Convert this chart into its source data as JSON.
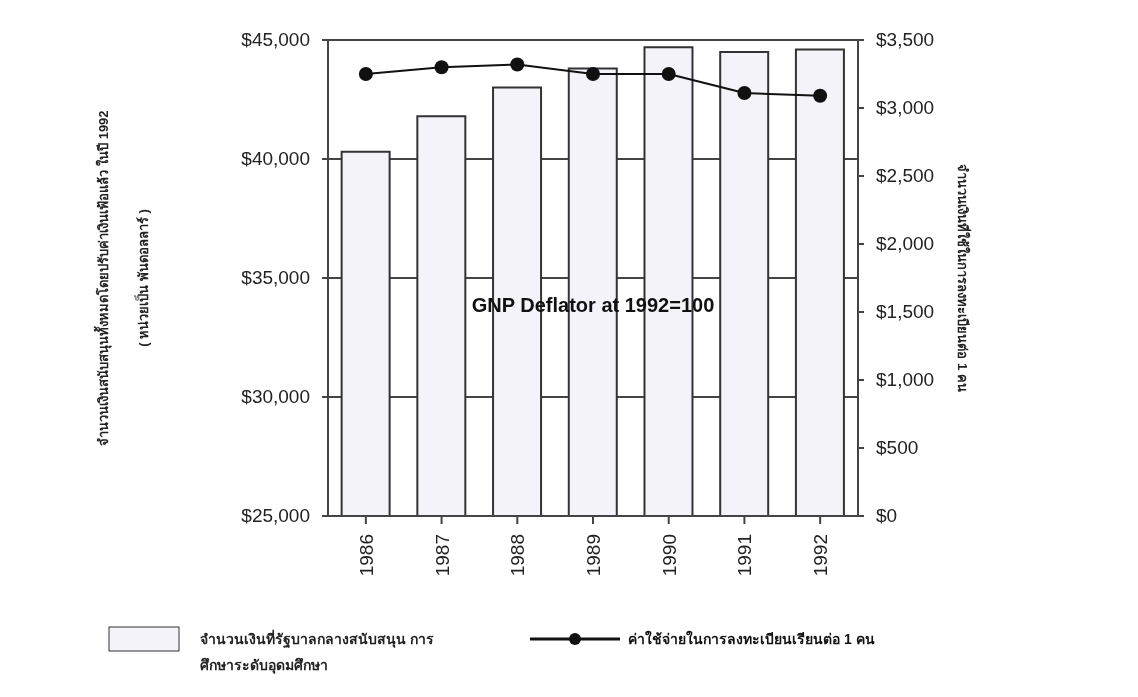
{
  "chart_data": {
    "type": "bar",
    "categories": [
      "1986",
      "1987",
      "1988",
      "1989",
      "1990",
      "1991",
      "1992"
    ],
    "series": [
      {
        "name": "จำนวนเงินที่รัฐบาลกลางสนับสนุน การศึกษาระดับอุดมศึกษา",
        "color": "#f3f3f9",
        "values": [
          40300,
          41800,
          43000,
          43800,
          44700,
          44500,
          44600
        ]
      },
      {
        "name": "ค่าใช้จ่ายในการลงทะเบียนเรียนต่อ 1 คน",
        "type": "line",
        "axis": "y2",
        "color": "#111111",
        "marker": "circle",
        "values": [
          3250,
          3300,
          3320,
          3250,
          3250,
          3110,
          3090
        ]
      }
    ],
    "ylabel": "จำนวนเงินสนับสนุนทั้งหมดโดยปรับค่าเงินเฟ้อแล้ว ในปี 1992\n( หน่วยเป็น พันดอลลาร์ )",
    "y2label": "จำนวนเงินที่ใช้ในการลงทะเบียนต่อ 1 คน",
    "ylim": [
      25000,
      45000
    ],
    "yticks": [
      {
        "value": 25000,
        "label": "$25,000"
      },
      {
        "value": 30000,
        "label": "$30,000"
      },
      {
        "value": 35000,
        "label": "$35,000"
      },
      {
        "value": 40000,
        "label": "$40,000"
      },
      {
        "value": 45000,
        "label": "$45,000"
      }
    ],
    "y2lim": [
      0,
      3500
    ],
    "y2ticks": [
      {
        "value": 0,
        "label": "$0"
      },
      {
        "value": 500,
        "label": "$500"
      },
      {
        "value": 1000,
        "label": "$1,000"
      },
      {
        "value": 1500,
        "label": "$1,500"
      },
      {
        "value": 2000,
        "label": "$2,000"
      },
      {
        "value": 2500,
        "label": "$2,500"
      },
      {
        "value": 3000,
        "label": "$3,000"
      },
      {
        "value": 3500,
        "label": "$3,500"
      }
    ],
    "annotations": [
      "GNP Deflator at 1992=100"
    ],
    "grid": "y",
    "legend": "bottom"
  }
}
